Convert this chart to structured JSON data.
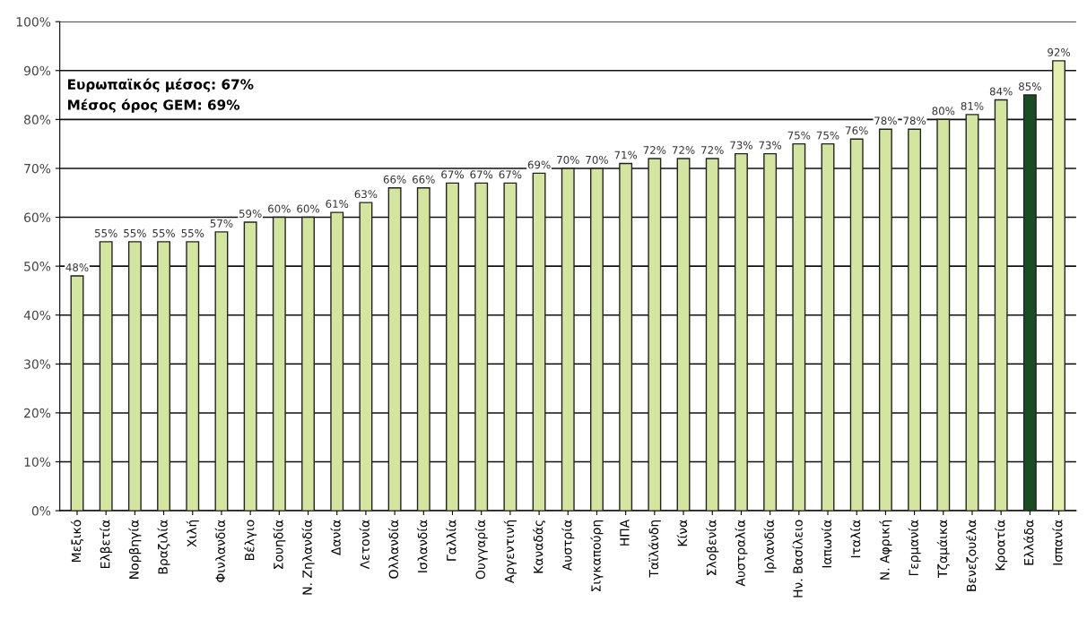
{
  "chart_data": {
    "type": "bar",
    "categories": [
      "Μεξικό",
      "Ελβετία",
      "Νορβηγία",
      "Βραζιλία",
      "Χιλή",
      "Φινλανδία",
      "Βέλγιο",
      "Σουηδία",
      "Ν. Ζηλανδία",
      "Δανία",
      "Λετονία",
      "Ολλανδία",
      "Ισλανδία",
      "Γαλλία",
      "Ουγγαρία",
      "Αργεντινή",
      "Καναδάς",
      "Αυστρία",
      "Σιγκαπούρη",
      "ΗΠΑ",
      "Ταϊλάνδη",
      "Κίνα",
      "Σλοβενία",
      "Αυστραλία",
      "Ιρλανδία",
      "Ην. Βασίλειο",
      "Ιαπωνία",
      "Ιταλία",
      "Ν. Αφρική",
      "Γερμανία",
      "Τζαμάικα",
      "Βενεζουέλα",
      "Κροατία",
      "Ελλάδα",
      "Ισπανία"
    ],
    "values": [
      48,
      55,
      55,
      55,
      55,
      57,
      59,
      60,
      60,
      61,
      63,
      66,
      66,
      67,
      67,
      67,
      69,
      70,
      70,
      71,
      72,
      72,
      72,
      73,
      73,
      75,
      75,
      76,
      78,
      78,
      80,
      81,
      84,
      85,
      92
    ],
    "value_labels": [
      "48%",
      "55%",
      "55%",
      "55%",
      "55%",
      "57%",
      "59%",
      "60%",
      "60%",
      "61%",
      "63%",
      "66%",
      "66%",
      "67%",
      "67%",
      "67%",
      "69%",
      "70%",
      "70%",
      "71%",
      "72%",
      "72%",
      "72%",
      "73%",
      "73%",
      "75%",
      "75%",
      "76%",
      "78%",
      "78%",
      "80%",
      "81%",
      "84%",
      "85%",
      "92%"
    ],
    "colors": [
      "#d4e5a0",
      "#d4e5a0",
      "#d4e5a0",
      "#d4e5a0",
      "#d4e5a0",
      "#d4e5a0",
      "#d4e5a0",
      "#d4e5a0",
      "#d4e5a0",
      "#d4e5a0",
      "#d4e5a0",
      "#d4e5a0",
      "#d4e5a0",
      "#d4e5a0",
      "#d4e5a0",
      "#d4e5a0",
      "#d4e5a0",
      "#d4e5a0",
      "#d4e5a0",
      "#d4e5a0",
      "#d4e5a0",
      "#d4e5a0",
      "#d4e5a0",
      "#d4e5a0",
      "#d4e5a0",
      "#d4e5a0",
      "#d4e5a0",
      "#d4e5a0",
      "#d4e5a0",
      "#d4e5a0",
      "#d4e5a0",
      "#d4e5a0",
      "#d4e5a0",
      "#1a4d24",
      "#e4f0b0"
    ],
    "ylim": [
      0,
      100
    ],
    "yticks": [
      {
        "value": 0,
        "label": "0%"
      },
      {
        "value": 10,
        "label": "10%"
      },
      {
        "value": 20,
        "label": "20%"
      },
      {
        "value": 30,
        "label": "30%"
      },
      {
        "value": 40,
        "label": "40%"
      },
      {
        "value": 50,
        "label": "50%"
      },
      {
        "value": 60,
        "label": "60%"
      },
      {
        "value": 70,
        "label": "70%"
      },
      {
        "value": 80,
        "label": "80%"
      },
      {
        "value": 90,
        "label": "90%"
      },
      {
        "value": 100,
        "label": "100%"
      }
    ],
    "grid": "y",
    "annotations": [
      "Ευρωπαϊκός μέσος: 67%",
      "Μέσος όρος GEM: 69%"
    ]
  }
}
